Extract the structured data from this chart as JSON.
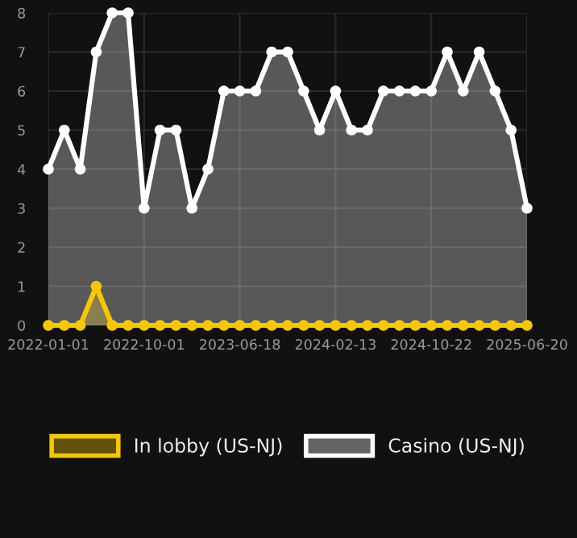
{
  "chart_data": {
    "type": "area",
    "categories": [
      "2022-01-01",
      null,
      null,
      null,
      null,
      null,
      "2022-10-01",
      null,
      null,
      null,
      null,
      null,
      "2023-06-18",
      null,
      null,
      null,
      null,
      null,
      "2024-02-13",
      null,
      null,
      null,
      null,
      null,
      "2024-10-22",
      null,
      null,
      null,
      null,
      null,
      "2025-06-20"
    ],
    "series": [
      {
        "name": "In lobby (US-NJ)",
        "color": "#f5c800",
        "values": [
          0,
          0,
          0,
          1,
          0,
          0,
          0,
          0,
          0,
          0,
          0,
          0,
          0,
          0,
          0,
          0,
          0,
          0,
          0,
          0,
          0,
          0,
          0,
          0,
          0,
          0,
          0,
          0,
          0,
          0,
          0
        ]
      },
      {
        "name": "Casino (US-NJ)",
        "color": "#ffffff",
        "values": [
          4,
          5,
          4,
          7,
          8,
          8,
          3,
          5,
          5,
          3,
          4,
          6,
          6,
          6,
          7,
          7,
          6,
          5,
          6,
          5,
          5,
          6,
          6,
          6,
          6,
          7,
          6,
          7,
          6,
          5,
          3
        ]
      }
    ],
    "ylim": [
      0,
      8
    ],
    "yticks": [
      0,
      1,
      2,
      3,
      4,
      5,
      6,
      7,
      8
    ],
    "grid": true,
    "legend": "bottom",
    "marker": "circle",
    "line_style": "solid"
  }
}
